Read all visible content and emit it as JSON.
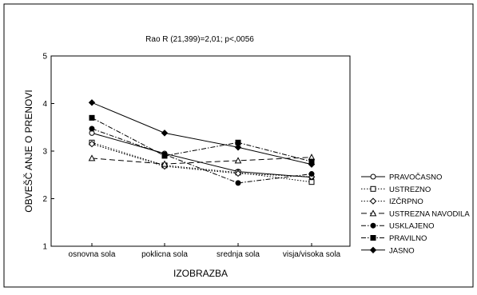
{
  "chart_data": {
    "type": "line",
    "title": "Rao R (21,399)=2,01; p<,0056",
    "xlabel": "IZOBRAZBA",
    "ylabel": "OBVEŠČ ANJE O PRENOVI",
    "ylim": [
      1,
      5
    ],
    "yticks": [
      "1",
      "2",
      "3",
      "4",
      "5"
    ],
    "grid": false,
    "legend_position": "right",
    "categories": [
      "osnovna sola",
      "poklicna sola",
      "srednja sola",
      "visja/visoka sola"
    ],
    "series": [
      {
        "name": "PRAVOČASNO",
        "marker": "open-circle",
        "dash": "none",
        "values": [
          3.38,
          2.95,
          2.57,
          2.45
        ]
      },
      {
        "name": "USTREZNO",
        "marker": "open-square",
        "dash": "dotted",
        "values": [
          3.18,
          2.7,
          2.55,
          2.35
        ]
      },
      {
        "name": "IZČRPNO",
        "marker": "open-diamond",
        "dash": "dotted",
        "values": [
          3.15,
          2.68,
          2.53,
          2.46
        ]
      },
      {
        "name": "USTREZNA NAVODILA",
        "marker": "open-triangle",
        "dash": "dashed",
        "values": [
          2.85,
          2.73,
          2.8,
          2.87
        ]
      },
      {
        "name": "USKLAJENO",
        "marker": "filled-circle",
        "dash": "dash-dot",
        "values": [
          3.47,
          2.93,
          2.33,
          2.52
        ]
      },
      {
        "name": "PRAVILNO",
        "marker": "filled-square",
        "dash": "dash-dot",
        "values": [
          3.7,
          2.9,
          3.18,
          2.78
        ]
      },
      {
        "name": "JASNO",
        "marker": "filled-diamond",
        "dash": "none",
        "values": [
          4.02,
          3.38,
          3.08,
          2.72
        ]
      }
    ]
  }
}
